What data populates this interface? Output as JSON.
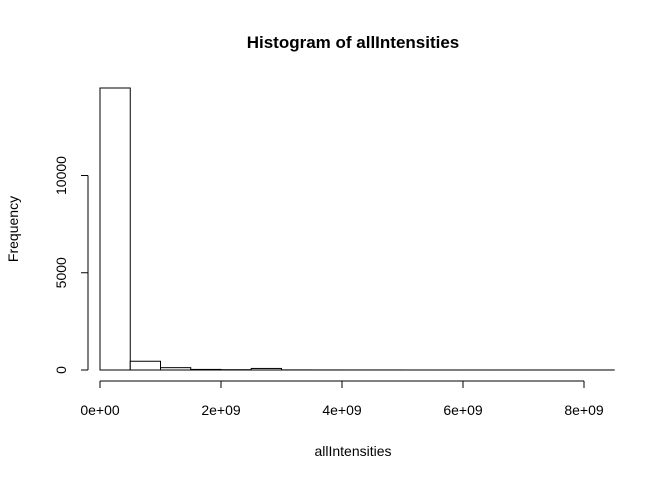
{
  "chart_data": {
    "type": "bar",
    "title": "Histogram of allIntensities",
    "xlabel": "allIntensities",
    "ylabel": "Frequency",
    "bin_edges": [
      0,
      500000000,
      1000000000,
      1500000000,
      2000000000,
      2500000000,
      3000000000,
      3500000000,
      4000000000,
      4500000000,
      5000000000,
      5500000000,
      6000000000,
      6500000000,
      7000000000,
      7500000000,
      8000000000,
      8500000000
    ],
    "values": [
      14500,
      450,
      120,
      30,
      15,
      80,
      5,
      3,
      2,
      2,
      1,
      1,
      1,
      1,
      1,
      1,
      1
    ],
    "xlim": [
      0,
      8500000000
    ],
    "ylim": [
      0,
      14500
    ],
    "x_ticks": [
      0,
      2000000000,
      4000000000,
      6000000000,
      8000000000
    ],
    "x_tick_labels": [
      "0e+00",
      "2e+09",
      "4e+09",
      "6e+09",
      "8e+09"
    ],
    "y_ticks": [
      0,
      5000,
      10000
    ],
    "y_tick_labels": [
      "0",
      "5000",
      "10000"
    ],
    "grid": false,
    "legend": "none",
    "bar_fill": "#ffffff",
    "bar_stroke": "#000000"
  }
}
